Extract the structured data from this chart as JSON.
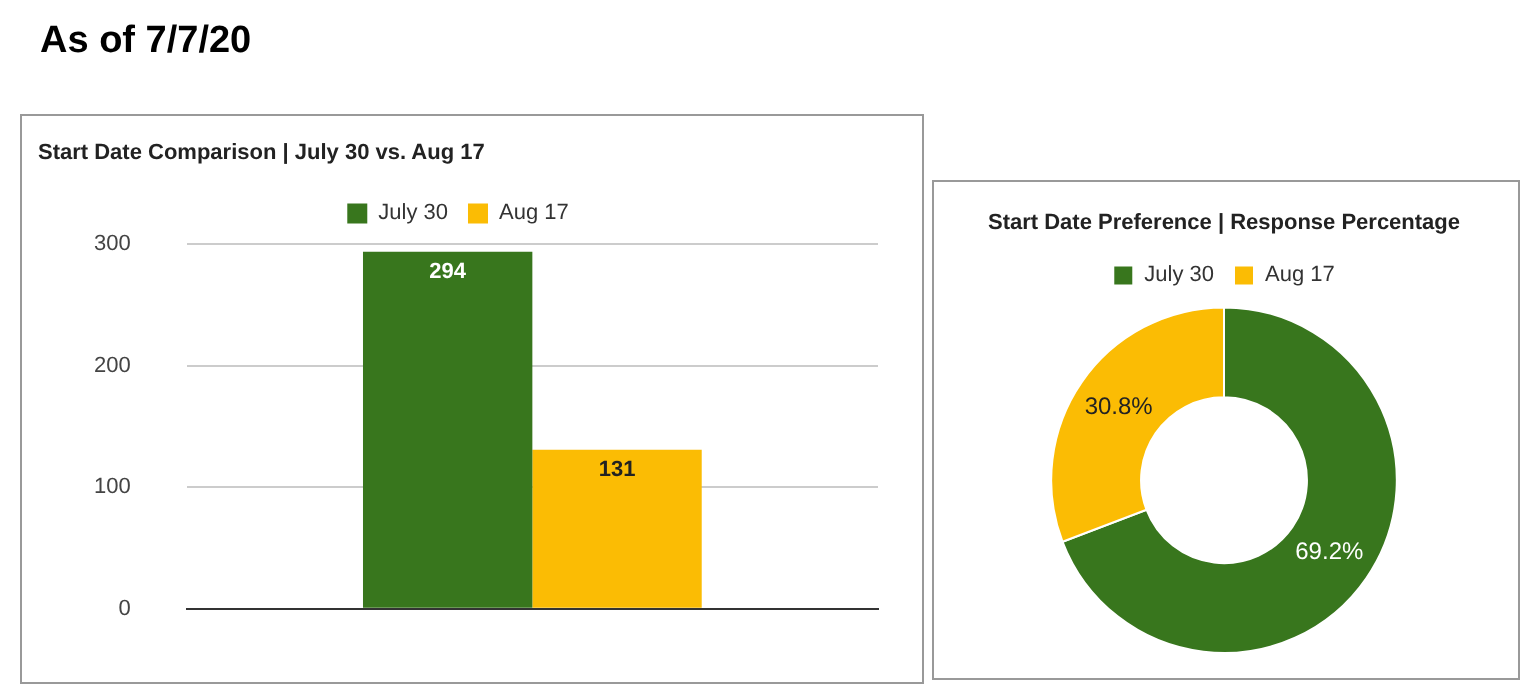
{
  "chart_data": [
    {
      "type": "bar",
      "title": "Start Date Comparison | July 30 vs. Aug 17",
      "annotations": [
        "As of 7/7/20"
      ],
      "categories": [
        null
      ],
      "series": [
        {
          "name": "July 30",
          "color": "#38761d",
          "values": [
            294
          ]
        },
        {
          "name": "Aug 17",
          "color": "#fbbc04",
          "values": [
            131
          ]
        }
      ],
      "ylim": [
        0,
        300
      ],
      "yticks": [
        0,
        100,
        200,
        300
      ],
      "grid": "y",
      "legend": "top",
      "data_labels": true
    },
    {
      "type": "donut",
      "title": "Start Date Preference | Response Percentage",
      "categories": [
        "July 30",
        "Aug 17"
      ],
      "values": [
        69.2,
        30.8
      ],
      "colors": [
        "#38761d",
        "#fbbc04"
      ],
      "value_labels": [
        "69.2%",
        "30.8%"
      ],
      "legend": "top"
    }
  ]
}
